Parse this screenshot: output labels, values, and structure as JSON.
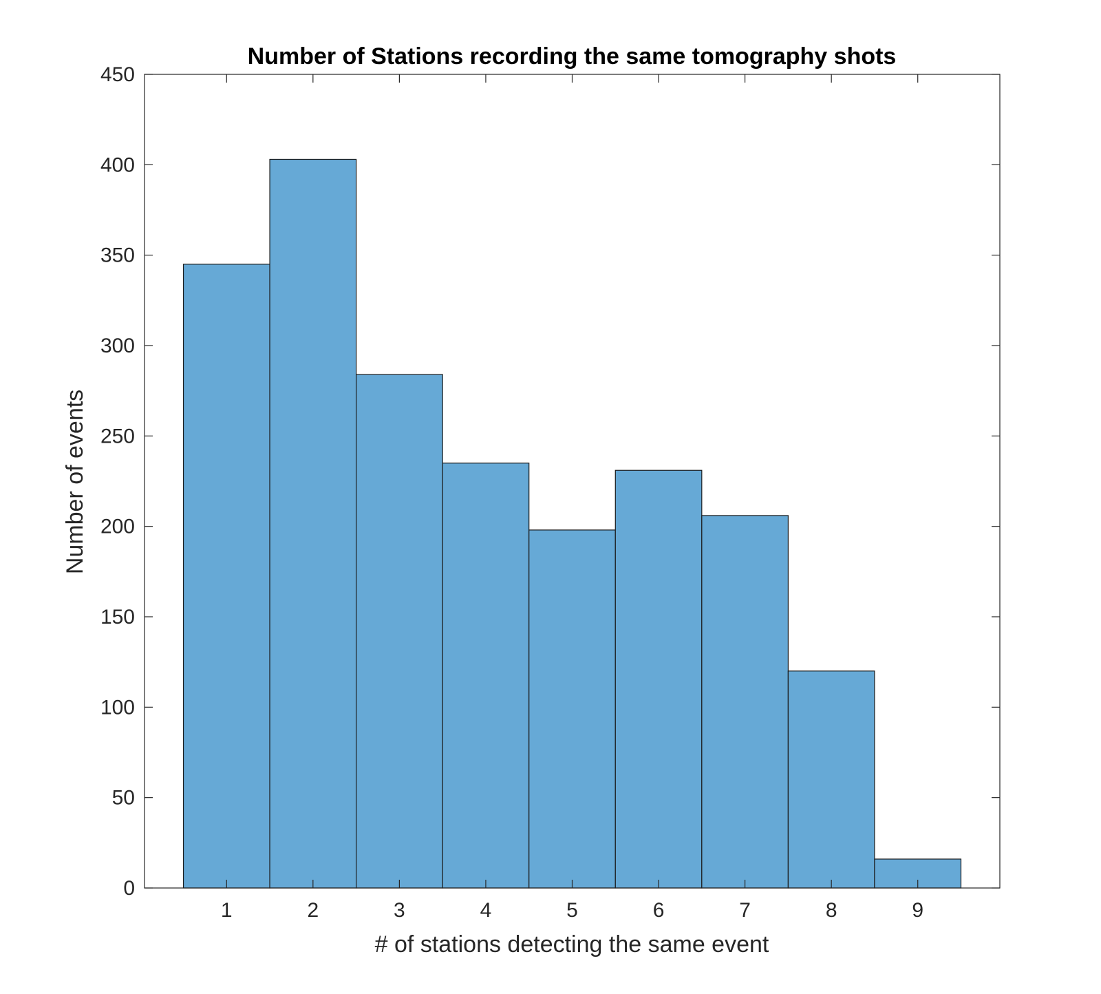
{
  "chart_data": {
    "type": "bar",
    "title": "Number of Stations recording the same tomography shots",
    "xlabel": "# of stations detecting the same event",
    "ylabel": "Number of events",
    "categories": [
      "1",
      "2",
      "3",
      "4",
      "5",
      "6",
      "7",
      "8",
      "9"
    ],
    "x": [
      1,
      2,
      3,
      4,
      5,
      6,
      7,
      8,
      9
    ],
    "values": [
      345,
      403,
      284,
      235,
      198,
      231,
      206,
      120,
      16
    ],
    "xlim": [
      0.05,
      9.95
    ],
    "ylim": [
      0,
      450
    ],
    "yticks": [
      0,
      50,
      100,
      150,
      200,
      250,
      300,
      350,
      400,
      450
    ],
    "grid": false,
    "bar_color": "#66a9d6",
    "edge_color": "#1a1a1a"
  }
}
